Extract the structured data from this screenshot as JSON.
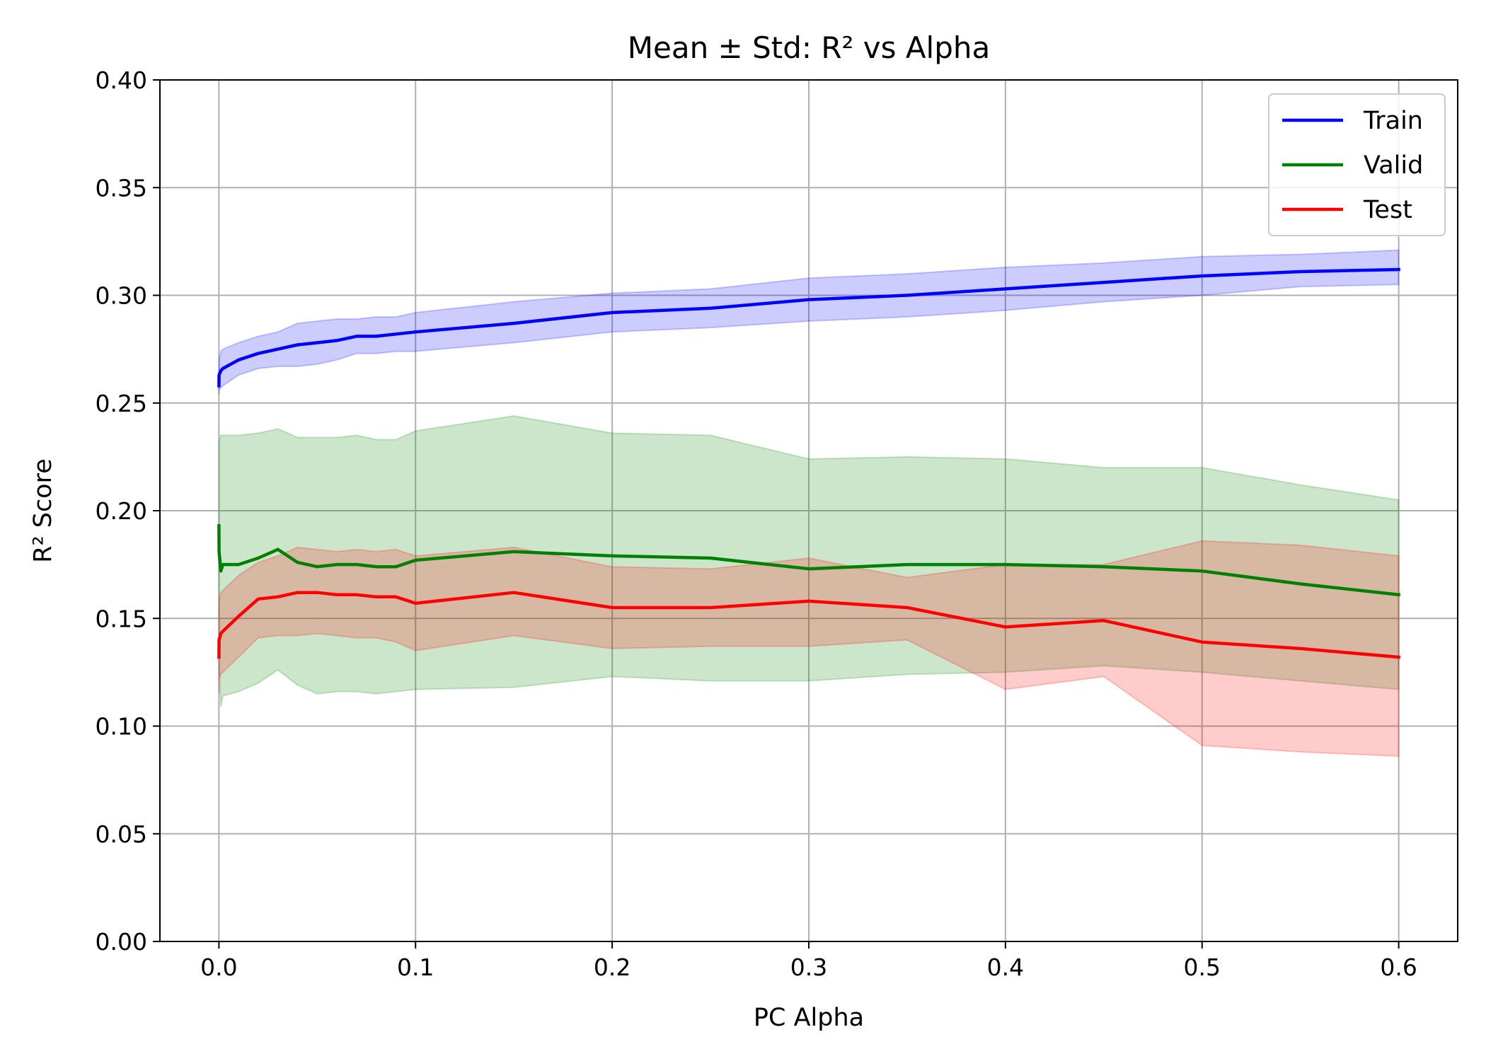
{
  "chart_data": {
    "type": "line",
    "title": "Mean ± Std: R² vs Alpha",
    "xlabel": "PC Alpha",
    "ylabel": "R² Score",
    "xlim": [
      -0.03,
      0.63
    ],
    "ylim": [
      0.0,
      0.4
    ],
    "xticks": [
      0.0,
      0.1,
      0.2,
      0.3,
      0.4,
      0.5,
      0.6
    ],
    "xtick_labels": [
      "0.0",
      "0.1",
      "0.2",
      "0.3",
      "0.4",
      "0.5",
      "0.6"
    ],
    "yticks": [
      0.0,
      0.05,
      0.1,
      0.15,
      0.2,
      0.25,
      0.3,
      0.35,
      0.4
    ],
    "ytick_labels": [
      "0.00",
      "0.05",
      "0.10",
      "0.15",
      "0.20",
      "0.25",
      "0.30",
      "0.35",
      "0.40"
    ],
    "grid": true,
    "legend_position": "top-right",
    "series": [
      {
        "name": "Train",
        "color": "#0000ff",
        "x": [
          0.0,
          0.0001,
          0.001,
          0.002,
          0.01,
          0.02,
          0.03,
          0.04,
          0.05,
          0.06,
          0.07,
          0.08,
          0.09,
          0.1,
          0.15,
          0.2,
          0.25,
          0.3,
          0.35,
          0.4,
          0.45,
          0.5,
          0.55,
          0.6
        ],
        "mean": [
          0.258,
          0.263,
          0.265,
          0.266,
          0.27,
          0.273,
          0.275,
          0.277,
          0.278,
          0.279,
          0.281,
          0.281,
          0.282,
          0.283,
          0.287,
          0.292,
          0.294,
          0.298,
          0.3,
          0.303,
          0.306,
          0.309,
          0.311,
          0.312
        ],
        "upper": [
          0.262,
          0.27,
          0.274,
          0.275,
          0.278,
          0.281,
          0.283,
          0.287,
          0.288,
          0.289,
          0.289,
          0.29,
          0.29,
          0.292,
          0.297,
          0.301,
          0.303,
          0.308,
          0.31,
          0.313,
          0.315,
          0.318,
          0.319,
          0.321
        ],
        "lower": [
          0.254,
          0.256,
          0.257,
          0.258,
          0.263,
          0.266,
          0.267,
          0.267,
          0.268,
          0.27,
          0.273,
          0.273,
          0.274,
          0.274,
          0.278,
          0.283,
          0.285,
          0.288,
          0.29,
          0.293,
          0.297,
          0.3,
          0.304,
          0.305
        ]
      },
      {
        "name": "Valid",
        "color": "#008000",
        "x": [
          0.0,
          0.0001,
          0.001,
          0.002,
          0.01,
          0.02,
          0.03,
          0.04,
          0.05,
          0.06,
          0.07,
          0.08,
          0.09,
          0.1,
          0.15,
          0.2,
          0.25,
          0.3,
          0.35,
          0.4,
          0.45,
          0.5,
          0.55,
          0.6
        ],
        "mean": [
          0.193,
          0.181,
          0.172,
          0.175,
          0.175,
          0.178,
          0.182,
          0.176,
          0.174,
          0.175,
          0.175,
          0.174,
          0.174,
          0.177,
          0.181,
          0.179,
          0.178,
          0.173,
          0.175,
          0.175,
          0.174,
          0.172,
          0.166,
          0.161
        ],
        "upper": [
          0.23,
          0.232,
          0.235,
          0.235,
          0.235,
          0.236,
          0.238,
          0.234,
          0.234,
          0.234,
          0.235,
          0.233,
          0.233,
          0.237,
          0.244,
          0.236,
          0.235,
          0.224,
          0.225,
          0.224,
          0.22,
          0.22,
          0.212,
          0.205
        ],
        "lower": [
          0.156,
          0.13,
          0.109,
          0.114,
          0.116,
          0.12,
          0.126,
          0.119,
          0.115,
          0.116,
          0.116,
          0.115,
          0.116,
          0.117,
          0.118,
          0.123,
          0.121,
          0.121,
          0.124,
          0.125,
          0.128,
          0.125,
          0.121,
          0.117
        ]
      },
      {
        "name": "Test",
        "color": "#ff0000",
        "x": [
          0.0,
          0.0001,
          0.001,
          0.002,
          0.01,
          0.02,
          0.03,
          0.04,
          0.05,
          0.06,
          0.07,
          0.08,
          0.09,
          0.1,
          0.15,
          0.2,
          0.25,
          0.3,
          0.35,
          0.4,
          0.45,
          0.5,
          0.55,
          0.6
        ],
        "mean": [
          0.132,
          0.14,
          0.143,
          0.144,
          0.151,
          0.159,
          0.16,
          0.162,
          0.162,
          0.161,
          0.161,
          0.16,
          0.16,
          0.157,
          0.162,
          0.155,
          0.155,
          0.158,
          0.155,
          0.146,
          0.149,
          0.139,
          0.136,
          0.132
        ],
        "upper": [
          0.15,
          0.158,
          0.162,
          0.163,
          0.17,
          0.176,
          0.179,
          0.183,
          0.182,
          0.181,
          0.182,
          0.181,
          0.182,
          0.179,
          0.183,
          0.174,
          0.173,
          0.178,
          0.169,
          0.175,
          0.175,
          0.186,
          0.184,
          0.179
        ],
        "lower": [
          0.115,
          0.122,
          0.124,
          0.125,
          0.132,
          0.141,
          0.142,
          0.142,
          0.143,
          0.142,
          0.141,
          0.141,
          0.139,
          0.135,
          0.142,
          0.136,
          0.137,
          0.137,
          0.14,
          0.117,
          0.123,
          0.091,
          0.088,
          0.086
        ]
      }
    ]
  }
}
